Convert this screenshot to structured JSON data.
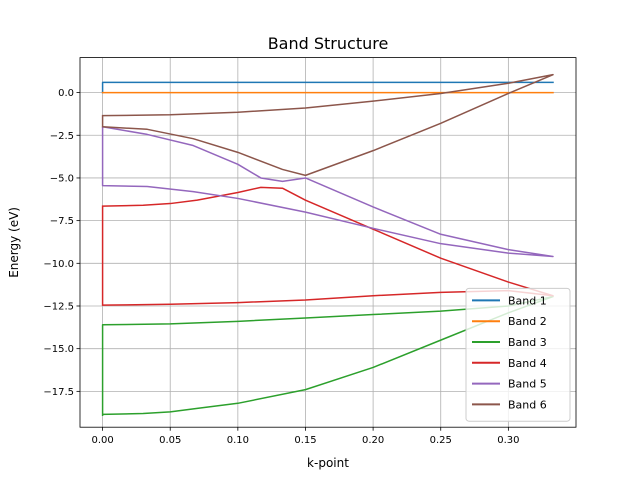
{
  "chart_data": {
    "type": "line",
    "title": "Band Structure",
    "xlabel": "k-point",
    "ylabel": "Energy (eV)",
    "xlim": [
      -0.0167,
      0.35
    ],
    "ylim": [
      -19.6,
      2.05
    ],
    "xticks": [
      0.0,
      0.05,
      0.1,
      0.15,
      0.2,
      0.25,
      0.3
    ],
    "xtick_labels": [
      "0.00",
      "0.05",
      "0.10",
      "0.15",
      "0.20",
      "0.25",
      "0.30"
    ],
    "yticks": [
      0.0,
      -2.5,
      -5.0,
      -7.5,
      -10.0,
      -12.5,
      -15.0,
      -17.5
    ],
    "ytick_labels": [
      "0.0",
      "−2.5",
      "−5.0",
      "−7.5",
      "−10.0",
      "−12.5",
      "−15.0",
      "−17.5"
    ],
    "grid": true,
    "legend_position": "lower-right",
    "series": [
      {
        "name": "Band 1",
        "color": "#1f77b4",
        "x": [
          0.0,
          0.0,
          0.0,
          0.333,
          0.333
        ],
        "y": [
          0.0,
          0.6,
          0.6,
          0.6,
          0.6
        ]
      },
      {
        "name": "Band 2",
        "color": "#ff7f0e",
        "x": [
          0.0,
          0.333
        ],
        "y": [
          0.0,
          0.0
        ]
      },
      {
        "name": "Band 3",
        "color": "#2ca02c",
        "x": [
          0.0,
          0.0,
          0.03,
          0.05,
          0.07,
          0.1,
          0.15,
          0.2,
          0.25,
          0.3,
          0.333,
          0.333,
          0.3,
          0.25,
          0.2,
          0.15,
          0.1,
          0.05,
          0.0,
          0.0
        ],
        "y": [
          -18.9,
          -18.85,
          -18.8,
          -18.7,
          -18.5,
          -18.2,
          -17.4,
          -16.1,
          -14.5,
          -12.9,
          -11.95,
          -11.95,
          -12.5,
          -12.8,
          -13.0,
          -13.2,
          -13.4,
          -13.55,
          -13.6,
          -18.9
        ]
      },
      {
        "name": "Band 4",
        "color": "#d62728",
        "x": [
          0.0,
          0.0,
          0.03,
          0.05,
          0.07,
          0.1,
          0.117,
          0.133,
          0.15,
          0.2,
          0.25,
          0.3,
          0.333,
          0.333,
          0.3,
          0.25,
          0.2,
          0.15,
          0.1,
          0.05,
          0.0,
          0.0
        ],
        "y": [
          -12.45,
          -6.65,
          -6.6,
          -6.5,
          -6.3,
          -5.85,
          -5.55,
          -5.6,
          -6.3,
          -8.0,
          -9.7,
          -11.1,
          -11.9,
          -11.9,
          -11.6,
          -11.7,
          -11.9,
          -12.15,
          -12.3,
          -12.4,
          -12.45,
          -6.65
        ]
      },
      {
        "name": "Band 5",
        "color": "#9467bd",
        "x": [
          0.0,
          0.0,
          0.033,
          0.067,
          0.1,
          0.15,
          0.2,
          0.25,
          0.3,
          0.333,
          0.333,
          0.3,
          0.25,
          0.2,
          0.15,
          0.133,
          0.117,
          0.1,
          0.067,
          0.033,
          0.0,
          0.0
        ],
        "y": [
          -4.3,
          -5.45,
          -5.5,
          -5.8,
          -6.2,
          -7.0,
          -7.95,
          -8.85,
          -9.4,
          -9.6,
          -9.6,
          -9.2,
          -8.3,
          -6.7,
          -5.0,
          -5.2,
          -5.0,
          -4.2,
          -3.1,
          -2.45,
          -2.0,
          -4.3
        ]
      },
      {
        "name": "Band 6",
        "color": "#8c564b",
        "x": [
          0.0,
          0.0,
          0.033,
          0.067,
          0.1,
          0.133,
          0.15,
          0.2,
          0.25,
          0.3,
          0.333,
          0.333,
          0.3,
          0.25,
          0.2,
          0.15,
          0.1,
          0.05,
          0.0,
          0.0
        ],
        "y": [
          -1.35,
          -2.0,
          -2.15,
          -2.7,
          -3.5,
          -4.5,
          -4.85,
          -3.4,
          -1.8,
          -0.05,
          1.05,
          1.05,
          0.55,
          -0.05,
          -0.5,
          -0.9,
          -1.15,
          -1.3,
          -1.35,
          -2.0
        ]
      }
    ]
  }
}
